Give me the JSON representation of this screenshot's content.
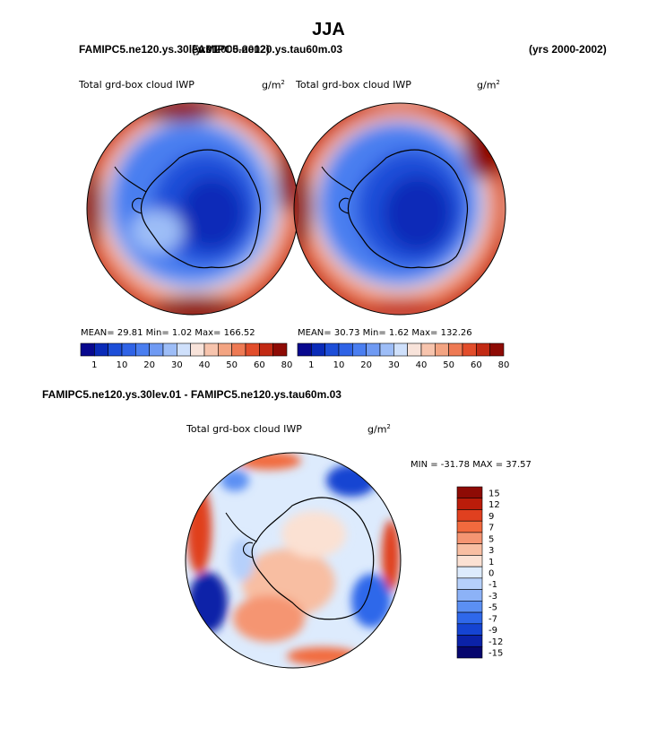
{
  "figure": {
    "title": "JJA",
    "case_header": "FAMIPC5.ne120.ys.30lev.01",
    "case_header_overlap": "FAMIPC5.ne120.ys.tau60m.03",
    "years_overlap": "(yrs 2000-2002)",
    "years": "(yrs 2000-2002)",
    "diff_header": "FAMIPC5.ne120.ys.30lev.01 - FAMIPC5.ne120.ys.tau60m.03"
  },
  "colors": {
    "full": [
      "#08088e",
      "#0a2bb8",
      "#1d4ed8",
      "#2f63e6",
      "#4a7ef0",
      "#6f9af3",
      "#9dbdf7",
      "#cfe0fb",
      "#f8e3da",
      "#f7c4ad",
      "#f3a482",
      "#ee7a54",
      "#e24d2b",
      "#c22a14",
      "#8e0b05"
    ],
    "diff": [
      "#8e0b05",
      "#bb1c0a",
      "#e0401f",
      "#f26a3e",
      "#f59572",
      "#f8bea2",
      "#fbe1d3",
      "#ddebfd",
      "#b6d0fb",
      "#8cb2f7",
      "#5b8ff3",
      "#2f68ea",
      "#1544d2",
      "#0b22a8",
      "#06066e"
    ],
    "land_fill": "#1e43c8"
  },
  "chart_data": [
    {
      "type": "heatmap",
      "projection": "south-polar-stereographic",
      "title": "Total grd-box cloud IWP",
      "units": "g/m",
      "units_exp": "2",
      "stats_text": "MEAN=  29.81  Min=    1.02  Max= 166.52",
      "mean": 29.81,
      "min": 1.02,
      "max": 166.52,
      "levels": [
        1,
        10,
        20,
        30,
        40,
        50,
        60,
        80
      ],
      "colorbar_ticks": [
        "1",
        "10",
        "20",
        "30",
        "40",
        "50",
        "60",
        "80"
      ]
    },
    {
      "type": "heatmap",
      "projection": "south-polar-stereographic",
      "title": "Total grd-box cloud IWP",
      "units": "g/m",
      "units_exp": "2",
      "stats_text": "MEAN=  30.73  Min=    1.62  Max= 132.26",
      "mean": 30.73,
      "min": 1.62,
      "max": 132.26,
      "levels": [
        1,
        10,
        20,
        30,
        40,
        50,
        60,
        80
      ],
      "colorbar_ticks": [
        "1",
        "10",
        "20",
        "30",
        "40",
        "50",
        "60",
        "80"
      ]
    },
    {
      "type": "heatmap",
      "projection": "south-polar-stereographic",
      "title": "Total grd-box cloud IWP",
      "units": "g/m",
      "units_exp": "2",
      "stats_text": "MIN = -31.78 MAX =  37.57",
      "min": -31.78,
      "max": 37.57,
      "levels": [
        15,
        12,
        9,
        7,
        5,
        3,
        1,
        0,
        -1,
        -3,
        -5,
        -7,
        -9,
        -12,
        -15
      ],
      "colorbar_ticks": [
        "15",
        "12",
        "9",
        "7",
        "5",
        "3",
        "1",
        "0",
        "-1",
        "-3",
        "-5",
        "-7",
        "-9",
        "-12",
        "-15"
      ]
    }
  ]
}
